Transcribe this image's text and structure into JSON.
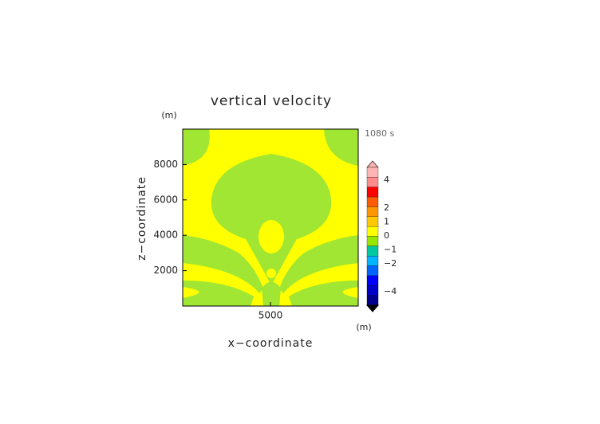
{
  "chart_data": {
    "type": "contour",
    "title": "vertical velocity",
    "y_unit": "(m)",
    "x_unit": "(m)",
    "time_label": "1080 s",
    "xlabel": "x−coordinate",
    "ylabel": "z−coordinate",
    "xlim": [
      0,
      10000
    ],
    "ylim": [
      0,
      10000
    ],
    "xticks": [
      5000
    ],
    "yticks": [
      2000,
      4000,
      6000,
      8000
    ],
    "colorbar": {
      "colors": [
        "#ffb4b4",
        "#ff8c8c",
        "#ff0000",
        "#ff5a00",
        "#ff9600",
        "#ffc800",
        "#ffff00",
        "#96e600",
        "#00c8a0",
        "#00b4ff",
        "#0064ff",
        "#0000ff",
        "#0000c8",
        "#00008c"
      ],
      "ticks": [
        4,
        2,
        1,
        0,
        {
          "value": -1,
          "label": "−1"
        },
        {
          "value": -2,
          "label": "−2"
        },
        {
          "value": -4,
          "label": "−4"
        }
      ]
    }
  }
}
